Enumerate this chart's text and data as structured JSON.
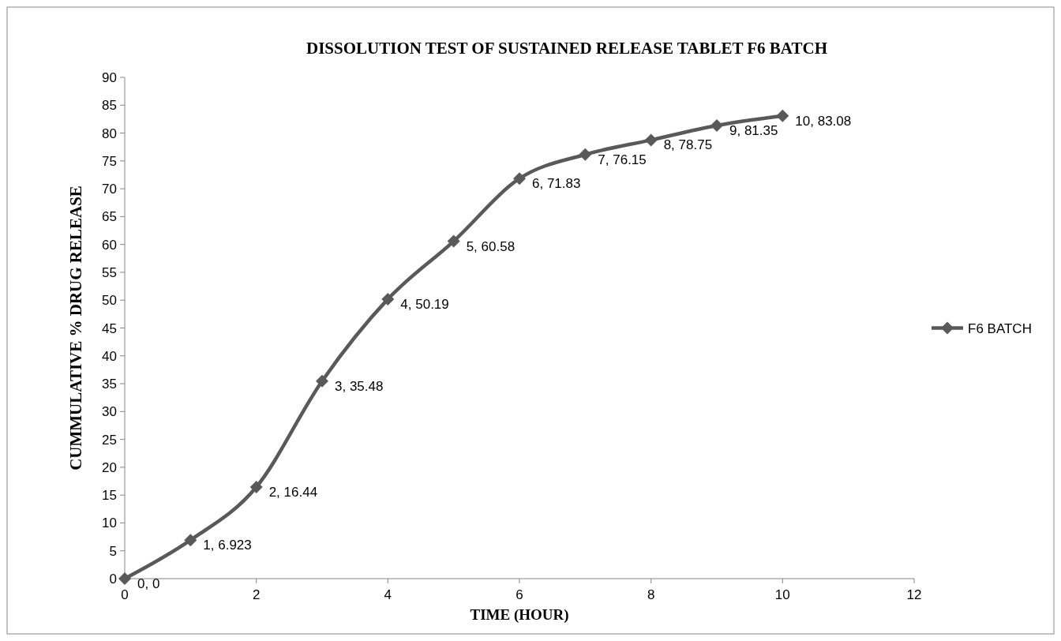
{
  "chart_data": {
    "type": "line",
    "title": "DISSOLUTION TEST OF SUSTAINED RELEASE TABLET F6 BATCH",
    "xlabel": "TIME (HOUR)",
    "ylabel": "CUMMULATIVE % DRUG RELEASE",
    "x": [
      0,
      1,
      2,
      3,
      4,
      5,
      6,
      7,
      8,
      9,
      10
    ],
    "series": [
      {
        "name": "F6 BATCH",
        "color": "#595959",
        "values": [
          0,
          6.923,
          16.44,
          35.48,
          50.19,
          60.58,
          71.83,
          76.15,
          78.75,
          81.35,
          83.08
        ],
        "value_labels": [
          "0, 0",
          "1, 6.923",
          "2, 16.44",
          "3, 35.48",
          "4, 50.19",
          "5, 60.58",
          "6, 71.83",
          "7, 76.15",
          "8, 78.75",
          "9, 81.35",
          "10, 83.08"
        ]
      }
    ],
    "xlim": [
      0,
      12
    ],
    "xticks": [
      0,
      2,
      4,
      6,
      8,
      10,
      12
    ],
    "ylim": [
      0,
      90
    ],
    "yticks": [
      0,
      5,
      10,
      15,
      20,
      25,
      30,
      35,
      40,
      45,
      50,
      55,
      60,
      65,
      70,
      75,
      80,
      85,
      90
    ],
    "grid": false,
    "legend": "right",
    "marker": "diamond",
    "line_style": "solid"
  }
}
